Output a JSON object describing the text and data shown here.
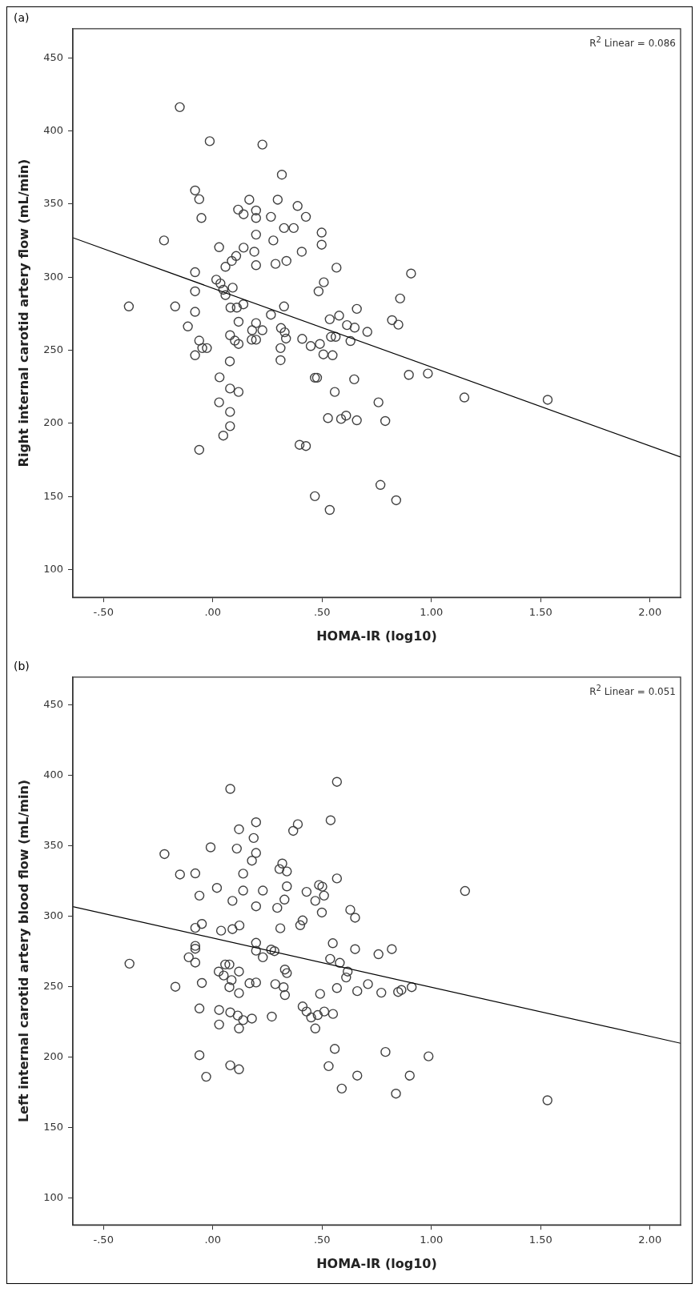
{
  "chart_data": [
    {
      "type": "scatter",
      "title": "(a)",
      "xlabel": "HOMA-IR (log10)",
      "ylabel": "Right internal carotid artery flow (mL/min)",
      "annotations": [
        "R$^{2}$ Linear = 0.086"
      ],
      "xlim": [
        -0.64,
        2.14
      ],
      "ylim": [
        81,
        470
      ],
      "xticks": [
        {
          "value": -0.5,
          "label": "-.50"
        },
        {
          "value": 0,
          "label": ".00"
        },
        {
          "value": 0.5,
          "label": ".50"
        },
        {
          "value": 1,
          "label": "1.00"
        },
        {
          "value": 1.5,
          "label": "1.50"
        },
        {
          "value": 2,
          "label": "2.00"
        }
      ],
      "yticks": [
        100,
        150,
        200,
        250,
        300,
        350,
        400,
        450
      ],
      "grid": false,
      "legend": false,
      "series": [
        {
          "marker": "circle",
          "color": "#404040",
          "x": [
            -0.151,
            -0.014,
            0.227,
            0.316,
            -0.081,
            -0.062,
            -0.052,
            0.116,
            0.141,
            0.167,
            0.198,
            0.198,
            0.266,
            0.297,
            0.388,
            0.426,
            0.326,
            0.37,
            0.498,
            0.498,
            0.198,
            0.277,
            -0.223,
            0.029,
            0.141,
            0.107,
            0.087,
            0.058,
            0.19,
            0.198,
            0.287,
            0.337,
            0.407,
            0.566,
            -0.081,
            0.016,
            0.035,
            0.048,
            0.091,
            0.058,
            -0.081,
            0.508,
            0.484,
            -0.384,
            -0.172,
            -0.081,
            0.081,
            0.11,
            0.14,
            0.326,
            0.118,
            0.266,
            0.535,
            0.578,
            0.659,
            0.857,
            0.907,
            -0.114,
            0.198,
            0.18,
            0.227,
            0.312,
            0.329,
            0.335,
            0.614,
            0.649,
            0.707,
            0.82,
            0.849,
            -0.062,
            -0.048,
            -0.027,
            -0.081,
            0.079,
            0.101,
            0.118,
            0.178,
            0.198,
            0.31,
            0.31,
            0.409,
            0.448,
            0.49,
            0.506,
            0.548,
            0.541,
            0.562,
            0.63,
            0.078,
            0.031,
            0.079,
            0.118,
            0.467,
            0.477,
            0.558,
            0.647,
            0.029,
            0.079,
            0.079,
            0.048,
            -0.062,
            0.527,
            0.587,
            0.61,
            0.659,
            0.758,
            0.789,
            0.397,
            0.426,
            0.467,
            0.535,
            0.767,
            0.839,
            0.897,
            0.984,
            1.151,
            1.532
          ],
          "values": [
            416.3,
            393,
            390.7,
            370.1,
            359.3,
            353.3,
            340.5,
            346.2,
            343,
            353,
            345.6,
            340.5,
            341.3,
            353,
            348.7,
            341.3,
            333.6,
            333.6,
            330.5,
            322.2,
            329.1,
            325.1,
            325.1,
            320.5,
            320.2,
            314.5,
            311.1,
            307.1,
            317.4,
            308.2,
            309.1,
            311.1,
            317.4,
            306.5,
            303.4,
            298.3,
            295.7,
            291.4,
            292.8,
            287.7,
            290.3,
            296.5,
            290.3,
            280,
            280,
            276.3,
            279.2,
            279.2,
            281.4,
            280,
            269.5,
            274.3,
            271.2,
            273.7,
            278.3,
            285.4,
            302.5,
            266.3,
            268.6,
            263.7,
            263.7,
            265.2,
            262.3,
            258,
            267.2,
            265.5,
            262.6,
            270.6,
            267.5,
            256.6,
            251.5,
            251.5,
            246.6,
            260.3,
            256.6,
            254.3,
            257.2,
            257.2,
            251.5,
            243.2,
            257.8,
            252.9,
            254.3,
            247.2,
            246.6,
            259.2,
            259.2,
            256.3,
            242.4,
            231.5,
            223.8,
            221.5,
            231.2,
            231.2,
            221.5,
            230.1,
            214.4,
            207.8,
            198.1,
            191.6,
            181.9,
            203.6,
            203,
            205.3,
            202.1,
            214.4,
            201.6,
            185.3,
            184.5,
            150.2,
            140.8,
            157.9,
            147.4,
            233.2,
            234.1,
            217.7,
            216.1
          ]
        },
        {
          "type": "line",
          "marker": "none",
          "color": "#000000",
          "x": [
            -0.64,
            2.14
          ],
          "values": [
            327,
            177
          ]
        }
      ]
    },
    {
      "type": "scatter",
      "title": "(b)",
      "xlabel": "HOMA-IR (log10)",
      "ylabel": "Left internal carotid artery blood flow (mL/min)",
      "annotations": [
        "R$^{2}$ Linear = 0.051"
      ],
      "xlim": [
        -0.64,
        2.14
      ],
      "ylim": [
        81,
        470
      ],
      "xticks": [
        {
          "value": -0.5,
          "label": "-.50"
        },
        {
          "value": 0,
          "label": ".00"
        },
        {
          "value": 0.5,
          "label": ".50"
        },
        {
          "value": 1,
          "label": "1.00"
        },
        {
          "value": 1.5,
          "label": "1.50"
        },
        {
          "value": 2,
          "label": "2.00"
        }
      ],
      "yticks": [
        100,
        150,
        200,
        250,
        300,
        350,
        400,
        450
      ],
      "grid": false,
      "legend": false,
      "series": [
        {
          "marker": "circle",
          "color": "#404040",
          "x": [
            0.08,
            0.568,
            0.198,
            0.12,
            0.368,
            0.389,
            0.539,
            0.187,
            0.198,
            0.179,
            0.11,
            -0.01,
            -0.221,
            -0.15,
            -0.08,
            -0.061,
            0.019,
            0.09,
            0.139,
            0.139,
            0.229,
            0.198,
            0.318,
            0.305,
            0.339,
            0.339,
            0.328,
            0.295,
            0.429,
            0.486,
            0.501,
            0.509,
            0.469,
            0.499,
            0.568,
            0.629,
            0.651,
            0.411,
            0.4,
            0.309,
            -0.08,
            -0.05,
            0.038,
            0.09,
            0.122,
            -0.08,
            -0.08,
            -0.11,
            -0.08,
            -0.381,
            0.198,
            0.198,
            0.229,
            0.267,
            0.282,
            0.549,
            0.537,
            0.581,
            0.651,
            0.758,
            0.819,
            0.057,
            0.076,
            0.027,
            0.05,
            0.086,
            0.12,
            0.33,
            0.339,
            0.617,
            0.61,
            -0.171,
            -0.05,
            0.076,
            0.12,
            0.168,
            0.198,
            0.286,
            0.324,
            0.33,
            0.491,
            0.568,
            0.661,
            0.71,
            0.771,
            0.848,
            0.863,
            0.91,
            -0.061,
            0.029,
            0.029,
            0.08,
            0.114,
            0.139,
            0.12,
            0.179,
            0.27,
            0.411,
            0.429,
            0.45,
            0.48,
            0.51,
            0.55,
            0.469,
            -0.061,
            0.08,
            0.12,
            -0.03,
            0.558,
            0.53,
            0.59,
            0.661,
            0.79,
            0.901,
            0.838,
            0.987,
            1.154,
            1.531
          ],
          "values": [
            390.6,
            395.6,
            366.9,
            361.9,
            360.8,
            365.5,
            368.3,
            355.7,
            345.1,
            339.6,
            348.2,
            349.1,
            344.3,
            329.8,
            330.6,
            314.8,
            320.3,
            311.1,
            330.4,
            318.4,
            318.4,
            307.2,
            337.6,
            333.7,
            332,
            321.4,
            312,
            306.1,
            317.5,
            322.3,
            321.2,
            314.8,
            311.1,
            302.8,
            327,
            304.7,
            299.1,
            297.2,
            293.8,
            291.6,
            291.9,
            294.7,
            289.9,
            291,
            293.6,
            279.1,
            277.1,
            271,
            267.3,
            266.5,
            281.3,
            275.7,
            271,
            276.5,
            275.4,
            281,
            269.9,
            267.1,
            276.8,
            273.2,
            276.8,
            265.9,
            265.9,
            260.9,
            258.1,
            254.8,
            260.9,
            262.3,
            259.8,
            260.9,
            256.7,
            250.1,
            252.8,
            249.8,
            245.6,
            252.6,
            253.1,
            252,
            249.8,
            244.2,
            245,
            249.2,
            247,
            252,
            245.9,
            246.4,
            247.8,
            249.8,
            234.7,
            233.6,
            223.3,
            231.9,
            229.7,
            226.4,
            220.5,
            227.5,
            228.9,
            236.1,
            232.5,
            228.3,
            230,
            232.5,
            230.8,
            220.5,
            201.5,
            194.3,
            191.5,
            186.2,
            206,
            193.7,
            177.8,
            187,
            203.8,
            187,
            174.2,
            200.7,
            318.1,
            169.5
          ]
        },
        {
          "type": "line",
          "marker": "none",
          "color": "#000000",
          "x": [
            -0.64,
            2.14
          ],
          "values": [
            307,
            210
          ]
        }
      ]
    }
  ]
}
